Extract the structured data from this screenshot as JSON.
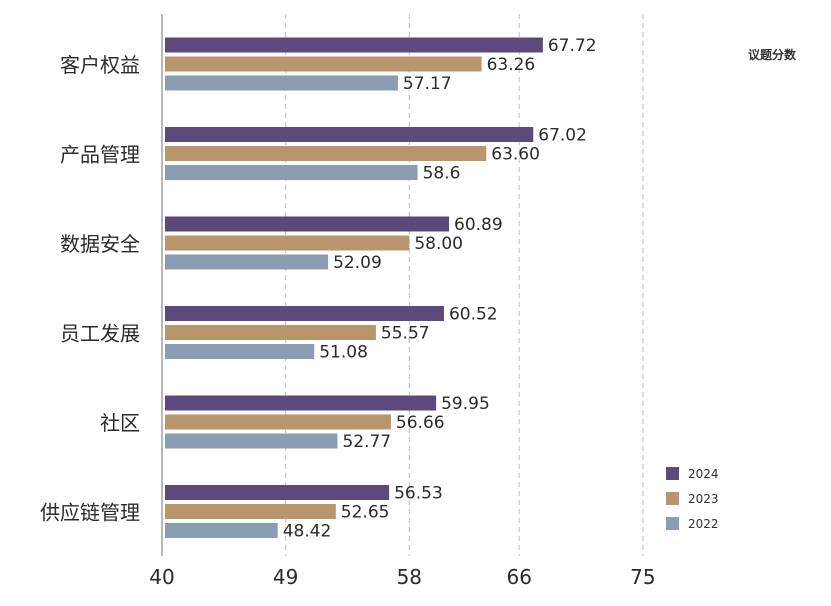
{
  "chart_data": {
    "type": "bar",
    "orientation": "horizontal",
    "title": "",
    "measure_label": "议题分数",
    "xlabel": "",
    "ylabel": "",
    "xlim": [
      40,
      75
    ],
    "xticks": [
      40,
      49,
      58,
      66,
      75
    ],
    "grid": true,
    "legend_position": "bottom-right",
    "categories": [
      "客户权益",
      "产品管理",
      "数据安全",
      "员工发展",
      "社区",
      "供应链管理"
    ],
    "series": [
      {
        "name": "2024",
        "color": "#5c4a7d",
        "values": [
          67.72,
          67.02,
          60.89,
          60.52,
          59.95,
          56.53
        ],
        "labels": [
          "67.72",
          "67.02",
          "60.89",
          "60.52",
          "59.95",
          "56.53"
        ]
      },
      {
        "name": "2023",
        "color": "#b8956a",
        "values": [
          63.26,
          63.6,
          58.0,
          55.57,
          56.66,
          52.65
        ],
        "labels": [
          "63.26",
          "63.60",
          "58.00",
          "55.57",
          "56.66",
          "52.65"
        ]
      },
      {
        "name": "2022",
        "color": "#8b9db2",
        "values": [
          57.17,
          58.6,
          52.09,
          51.08,
          52.77,
          48.42
        ],
        "labels": [
          "57.17",
          "58.6",
          "52.09",
          "51.08",
          "52.77",
          "48.42"
        ]
      }
    ]
  }
}
